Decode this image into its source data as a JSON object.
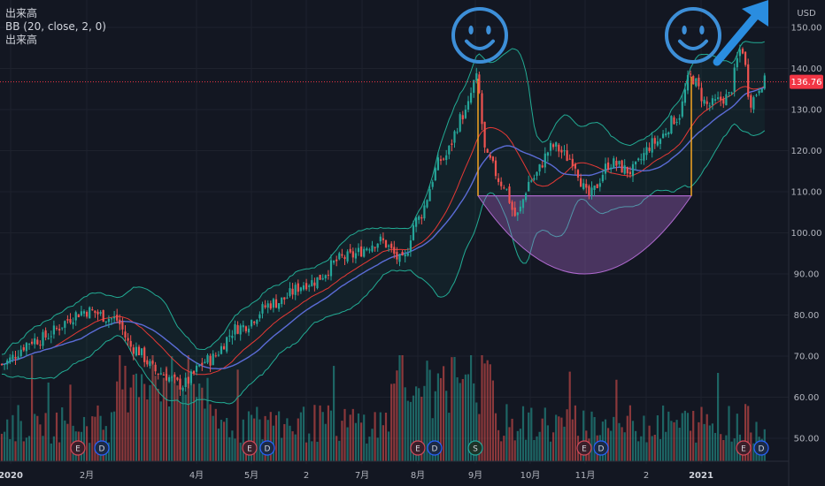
{
  "legend": {
    "line1": "出来高",
    "line2": "BB (20, close, 2, 0)",
    "line3": "出来高"
  },
  "currency": "USD",
  "colors": {
    "background": "#131722",
    "up": "#26a69a",
    "down": "#ef5350",
    "bb_band": "#22ab94",
    "sma_red": "#e53935",
    "sma_blue": "#5b6cd6",
    "price_line": "#f23645",
    "cup": "#b06ad0",
    "smiley": "#3d8fd8",
    "arrow": "#2a8de0"
  },
  "chart_data": {
    "type": "candlestick",
    "series_names": [
      "出来高",
      "BB (20, close, 2, 0)"
    ],
    "y_axis": {
      "ticks": [
        "150.00",
        "140.00",
        "130.00",
        "120.00",
        "110.00",
        "100.00",
        "90.00",
        "80.00",
        "70.00",
        "60.00",
        "50.00"
      ],
      "ylim": [
        44,
        156
      ]
    },
    "x_axis": {
      "ticks": [
        {
          "label": "2020",
          "bold": true
        },
        {
          "label": "2月"
        },
        {
          "label": "4月"
        },
        {
          "label": "5月"
        },
        {
          "label": "2"
        },
        {
          "label": "7月"
        },
        {
          "label": "8月"
        },
        {
          "label": "9月"
        },
        {
          "label": "10月"
        },
        {
          "label": "11月"
        },
        {
          "label": "2"
        },
        {
          "label": "2021",
          "bold": true
        }
      ]
    },
    "last_price": "136.76",
    "key_points": {
      "start": 68,
      "feb_peak": 81,
      "march_low": 63,
      "sep_peak": 137.5,
      "sep_low": 104,
      "dec_breakout": 138,
      "jan_high": 145,
      "last": 136.76
    },
    "cup_pattern": {
      "rim_level": 109,
      "bottom_level": 90,
      "left_rim": 137.5,
      "right_rim": 138
    },
    "events": [
      {
        "label": "E",
        "type": "earnings"
      },
      {
        "label": "D",
        "type": "dividend"
      },
      {
        "label": "E",
        "type": "earnings"
      },
      {
        "label": "D",
        "type": "dividend"
      },
      {
        "label": "E",
        "type": "earnings"
      },
      {
        "label": "D",
        "type": "dividend"
      },
      {
        "label": "S",
        "type": "split"
      },
      {
        "label": "E",
        "type": "earnings"
      },
      {
        "label": "D",
        "type": "dividend"
      },
      {
        "label": "E",
        "type": "earnings"
      },
      {
        "label": "D",
        "type": "dividend"
      }
    ]
  }
}
